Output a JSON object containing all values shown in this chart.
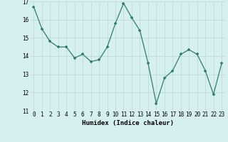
{
  "x": [
    0,
    1,
    2,
    3,
    4,
    5,
    6,
    7,
    8,
    9,
    10,
    11,
    12,
    13,
    14,
    15,
    16,
    17,
    18,
    19,
    20,
    21,
    22,
    23
  ],
  "y": [
    16.7,
    15.5,
    14.8,
    14.5,
    14.5,
    13.9,
    14.1,
    13.7,
    13.8,
    14.5,
    15.8,
    16.9,
    16.1,
    15.4,
    13.6,
    11.4,
    12.8,
    13.2,
    14.1,
    14.35,
    14.1,
    13.2,
    11.9,
    13.6
  ],
  "line_color": "#2e7d6e",
  "marker": "+",
  "marker_size": 3.5,
  "marker_lw": 1.2,
  "bg_color": "#d6f0f0",
  "grid_color": "#c0dada",
  "xlabel": "Humidex (Indice chaleur)",
  "ylim": [
    11,
    17
  ],
  "xlim": [
    -0.5,
    23.5
  ],
  "yticks": [
    11,
    12,
    13,
    14,
    15,
    16,
    17
  ],
  "xticks": [
    0,
    1,
    2,
    3,
    4,
    5,
    6,
    7,
    8,
    9,
    10,
    11,
    12,
    13,
    14,
    15,
    16,
    17,
    18,
    19,
    20,
    21,
    22,
    23
  ],
  "tick_fontsize": 5.5,
  "xlabel_fontsize": 6.5,
  "linewidth": 0.9
}
